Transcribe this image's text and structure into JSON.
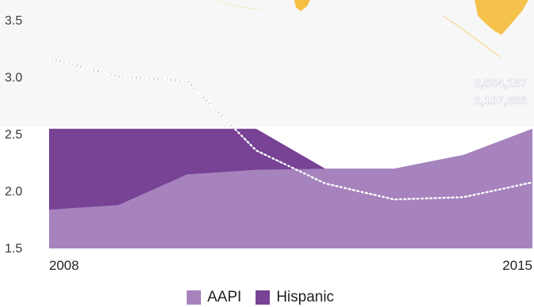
{
  "chart_data": {
    "type": "area",
    "x": [
      2008,
      2009,
      2010,
      2011,
      2012,
      2013,
      2014,
      2015
    ],
    "x_tick_labels": [
      "2008",
      "2015"
    ],
    "y_tick_labels": [
      "1.5",
      "2.0",
      "2.5",
      "3.0",
      "3.5"
    ],
    "ylim": [
      1.5,
      3.8
    ],
    "series": [
      {
        "name": "AAPI",
        "color": "#a683bd",
        "values": [
          1.84,
          1.88,
          2.15,
          2.19,
          2.2,
          2.2,
          2.32,
          2.55
        ]
      },
      {
        "name": "Hispanic",
        "color": "#784295",
        "values": [
          2.55,
          2.55,
          2.55,
          2.55,
          2.2,
          2.2,
          2.32,
          2.55
        ]
      }
    ],
    "dotted_line": {
      "color": "#ffffff",
      "values": [
        3.17,
        3.01,
        2.97,
        2.36,
        2.07,
        1.93,
        1.95,
        2.08
      ]
    },
    "annotations": [
      {
        "text": "2,564,187",
        "color": "#e9e0f1"
      },
      {
        "text": "2,107,686",
        "color": "#e9e0f1"
      }
    ],
    "legend_placement": "bottom"
  }
}
